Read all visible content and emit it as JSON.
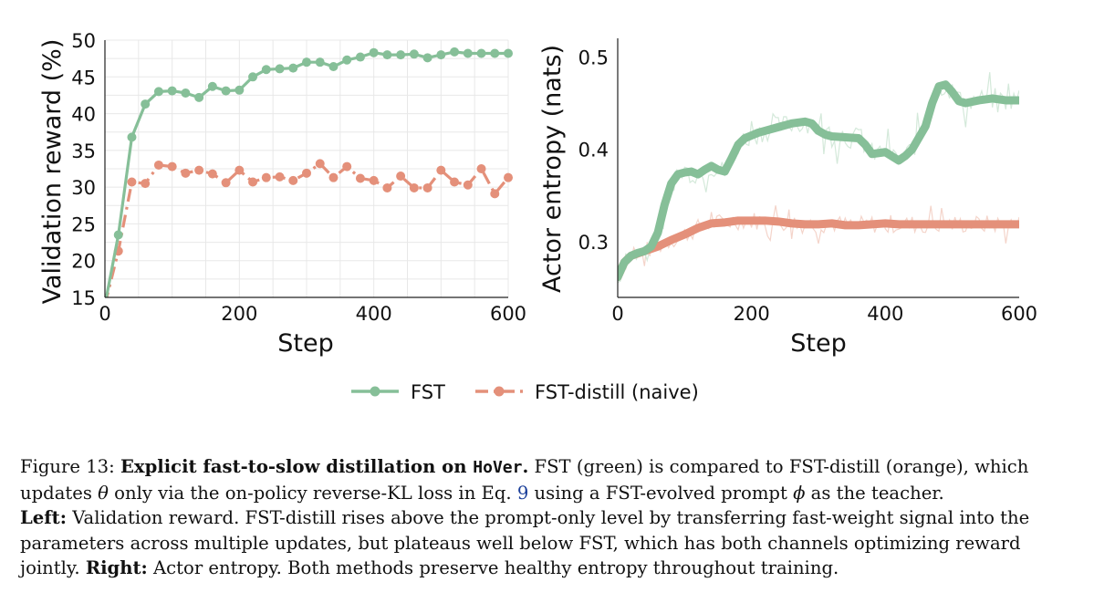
{
  "chart_data": [
    {
      "type": "line",
      "panel": "left",
      "xlabel": "Step",
      "ylabel": "Validation reward (%)",
      "xlim": [
        0,
        600
      ],
      "ylim": [
        15,
        50
      ],
      "xticks": [
        0,
        200,
        400,
        600
      ],
      "yticks": [
        15,
        20,
        25,
        30,
        35,
        40,
        45,
        50
      ],
      "grid": true,
      "series": [
        {
          "name": "FST",
          "style": "solid",
          "x": [
            0,
            20,
            40,
            60,
            80,
            100,
            120,
            140,
            160,
            180,
            200,
            220,
            240,
            260,
            280,
            300,
            320,
            340,
            360,
            380,
            400,
            420,
            440,
            460,
            480,
            500,
            520,
            540,
            560,
            580,
            600
          ],
          "values": [
            14,
            23.5,
            36.8,
            41.3,
            43.0,
            43.1,
            42.8,
            42.2,
            43.7,
            43.1,
            43.2,
            45.0,
            46.0,
            46.1,
            46.2,
            47.0,
            47.0,
            46.4,
            47.3,
            47.7,
            48.3,
            48.0,
            48.0,
            48.1,
            47.6,
            48.0,
            48.4,
            48.2,
            48.2,
            48.2,
            48.2
          ]
        },
        {
          "name": "FST-distill (naive)",
          "style": "dashdot",
          "x": [
            0,
            20,
            40,
            60,
            80,
            100,
            120,
            140,
            160,
            180,
            200,
            220,
            240,
            260,
            280,
            300,
            320,
            340,
            360,
            380,
            400,
            420,
            440,
            460,
            480,
            500,
            520,
            540,
            560,
            580,
            600
          ],
          "values": [
            14,
            21.3,
            30.7,
            30.5,
            33.0,
            32.8,
            31.9,
            32.3,
            31.8,
            30.6,
            32.3,
            30.7,
            31.3,
            31.4,
            30.9,
            31.9,
            33.2,
            31.3,
            32.8,
            31.2,
            30.9,
            29.9,
            31.5,
            29.9,
            29.9,
            32.3,
            30.7,
            30.3,
            32.5,
            29.1,
            31.3
          ]
        }
      ]
    },
    {
      "type": "line",
      "panel": "right",
      "xlabel": "Step",
      "ylabel": "Actor entropy (nats)",
      "xlim": [
        0,
        600
      ],
      "ylim": [
        0.24,
        0.52
      ],
      "xticks": [
        0,
        200,
        400,
        600
      ],
      "yticks": [
        0.3,
        0.4,
        0.5
      ],
      "grid": false,
      "series": [
        {
          "name": "FST",
          "style": "smoothed",
          "x": [
            0,
            10,
            20,
            30,
            40,
            50,
            60,
            70,
            80,
            90,
            100,
            110,
            120,
            130,
            140,
            150,
            160,
            170,
            180,
            190,
            200,
            210,
            220,
            240,
            260,
            280,
            290,
            300,
            310,
            320,
            340,
            360,
            370,
            380,
            400,
            420,
            430,
            440,
            460,
            470,
            480,
            490,
            500,
            510,
            520,
            540,
            560,
            580,
            600
          ],
          "values": [
            0.262,
            0.278,
            0.285,
            0.288,
            0.29,
            0.295,
            0.31,
            0.34,
            0.363,
            0.373,
            0.375,
            0.376,
            0.373,
            0.378,
            0.382,
            0.378,
            0.376,
            0.39,
            0.405,
            0.412,
            0.415,
            0.418,
            0.42,
            0.424,
            0.428,
            0.43,
            0.428,
            0.42,
            0.416,
            0.414,
            0.413,
            0.412,
            0.405,
            0.395,
            0.397,
            0.388,
            0.393,
            0.4,
            0.425,
            0.45,
            0.468,
            0.47,
            0.462,
            0.452,
            0.45,
            0.453,
            0.455,
            0.453,
            0.453
          ]
        },
        {
          "name": "FST-distill (naive)",
          "style": "smoothed",
          "x": [
            0,
            10,
            20,
            40,
            60,
            80,
            100,
            120,
            140,
            160,
            180,
            200,
            220,
            240,
            260,
            280,
            300,
            320,
            340,
            360,
            380,
            400,
            420,
            440,
            460,
            480,
            500,
            520,
            540,
            560,
            580,
            600
          ],
          "values": [
            0.262,
            0.278,
            0.285,
            0.29,
            0.295,
            0.302,
            0.308,
            0.315,
            0.32,
            0.321,
            0.323,
            0.323,
            0.323,
            0.322,
            0.32,
            0.319,
            0.319,
            0.32,
            0.318,
            0.318,
            0.319,
            0.32,
            0.319,
            0.319,
            0.319,
            0.319,
            0.319,
            0.319,
            0.319,
            0.319,
            0.319,
            0.319
          ]
        }
      ]
    }
  ],
  "legend": {
    "position": "bottom-center",
    "items": [
      "FST",
      "FST-distill (naive)"
    ]
  },
  "colors": {
    "fst": "#86bf98",
    "distill": "#e4907a",
    "fst_raw": "#cfe7d6",
    "distill_raw": "#f3cfc4",
    "text": "#111111",
    "grid": "#e8e8e8",
    "link": "#1b3f9a"
  },
  "caption": {
    "prefix": "Figure 13: ",
    "bold_title": "Explicit fast-to-slow distillation on ",
    "dataset": "HoVer",
    "title_end": ".",
    "text1": " FST (green) is compared to FST-distill (orange), which updates ",
    "theta": "θ",
    "text2": " only via the on-policy reverse-KL loss in Eq. ",
    "eq_ref": "9",
    "text3": " using a FST-evolved prompt ",
    "phi": "ϕ",
    "text4": " as the teacher. ",
    "left_label": "Left:",
    "left_text": " Validation reward. FST-distill rises above the prompt-only level by transferring fast-weight signal into the parameters across multiple updates, but plateaus well below FST, which has both channels optimizing reward jointly. ",
    "right_label": "Right:",
    "right_text": " Actor entropy. Both methods preserve healthy entropy throughout training."
  }
}
